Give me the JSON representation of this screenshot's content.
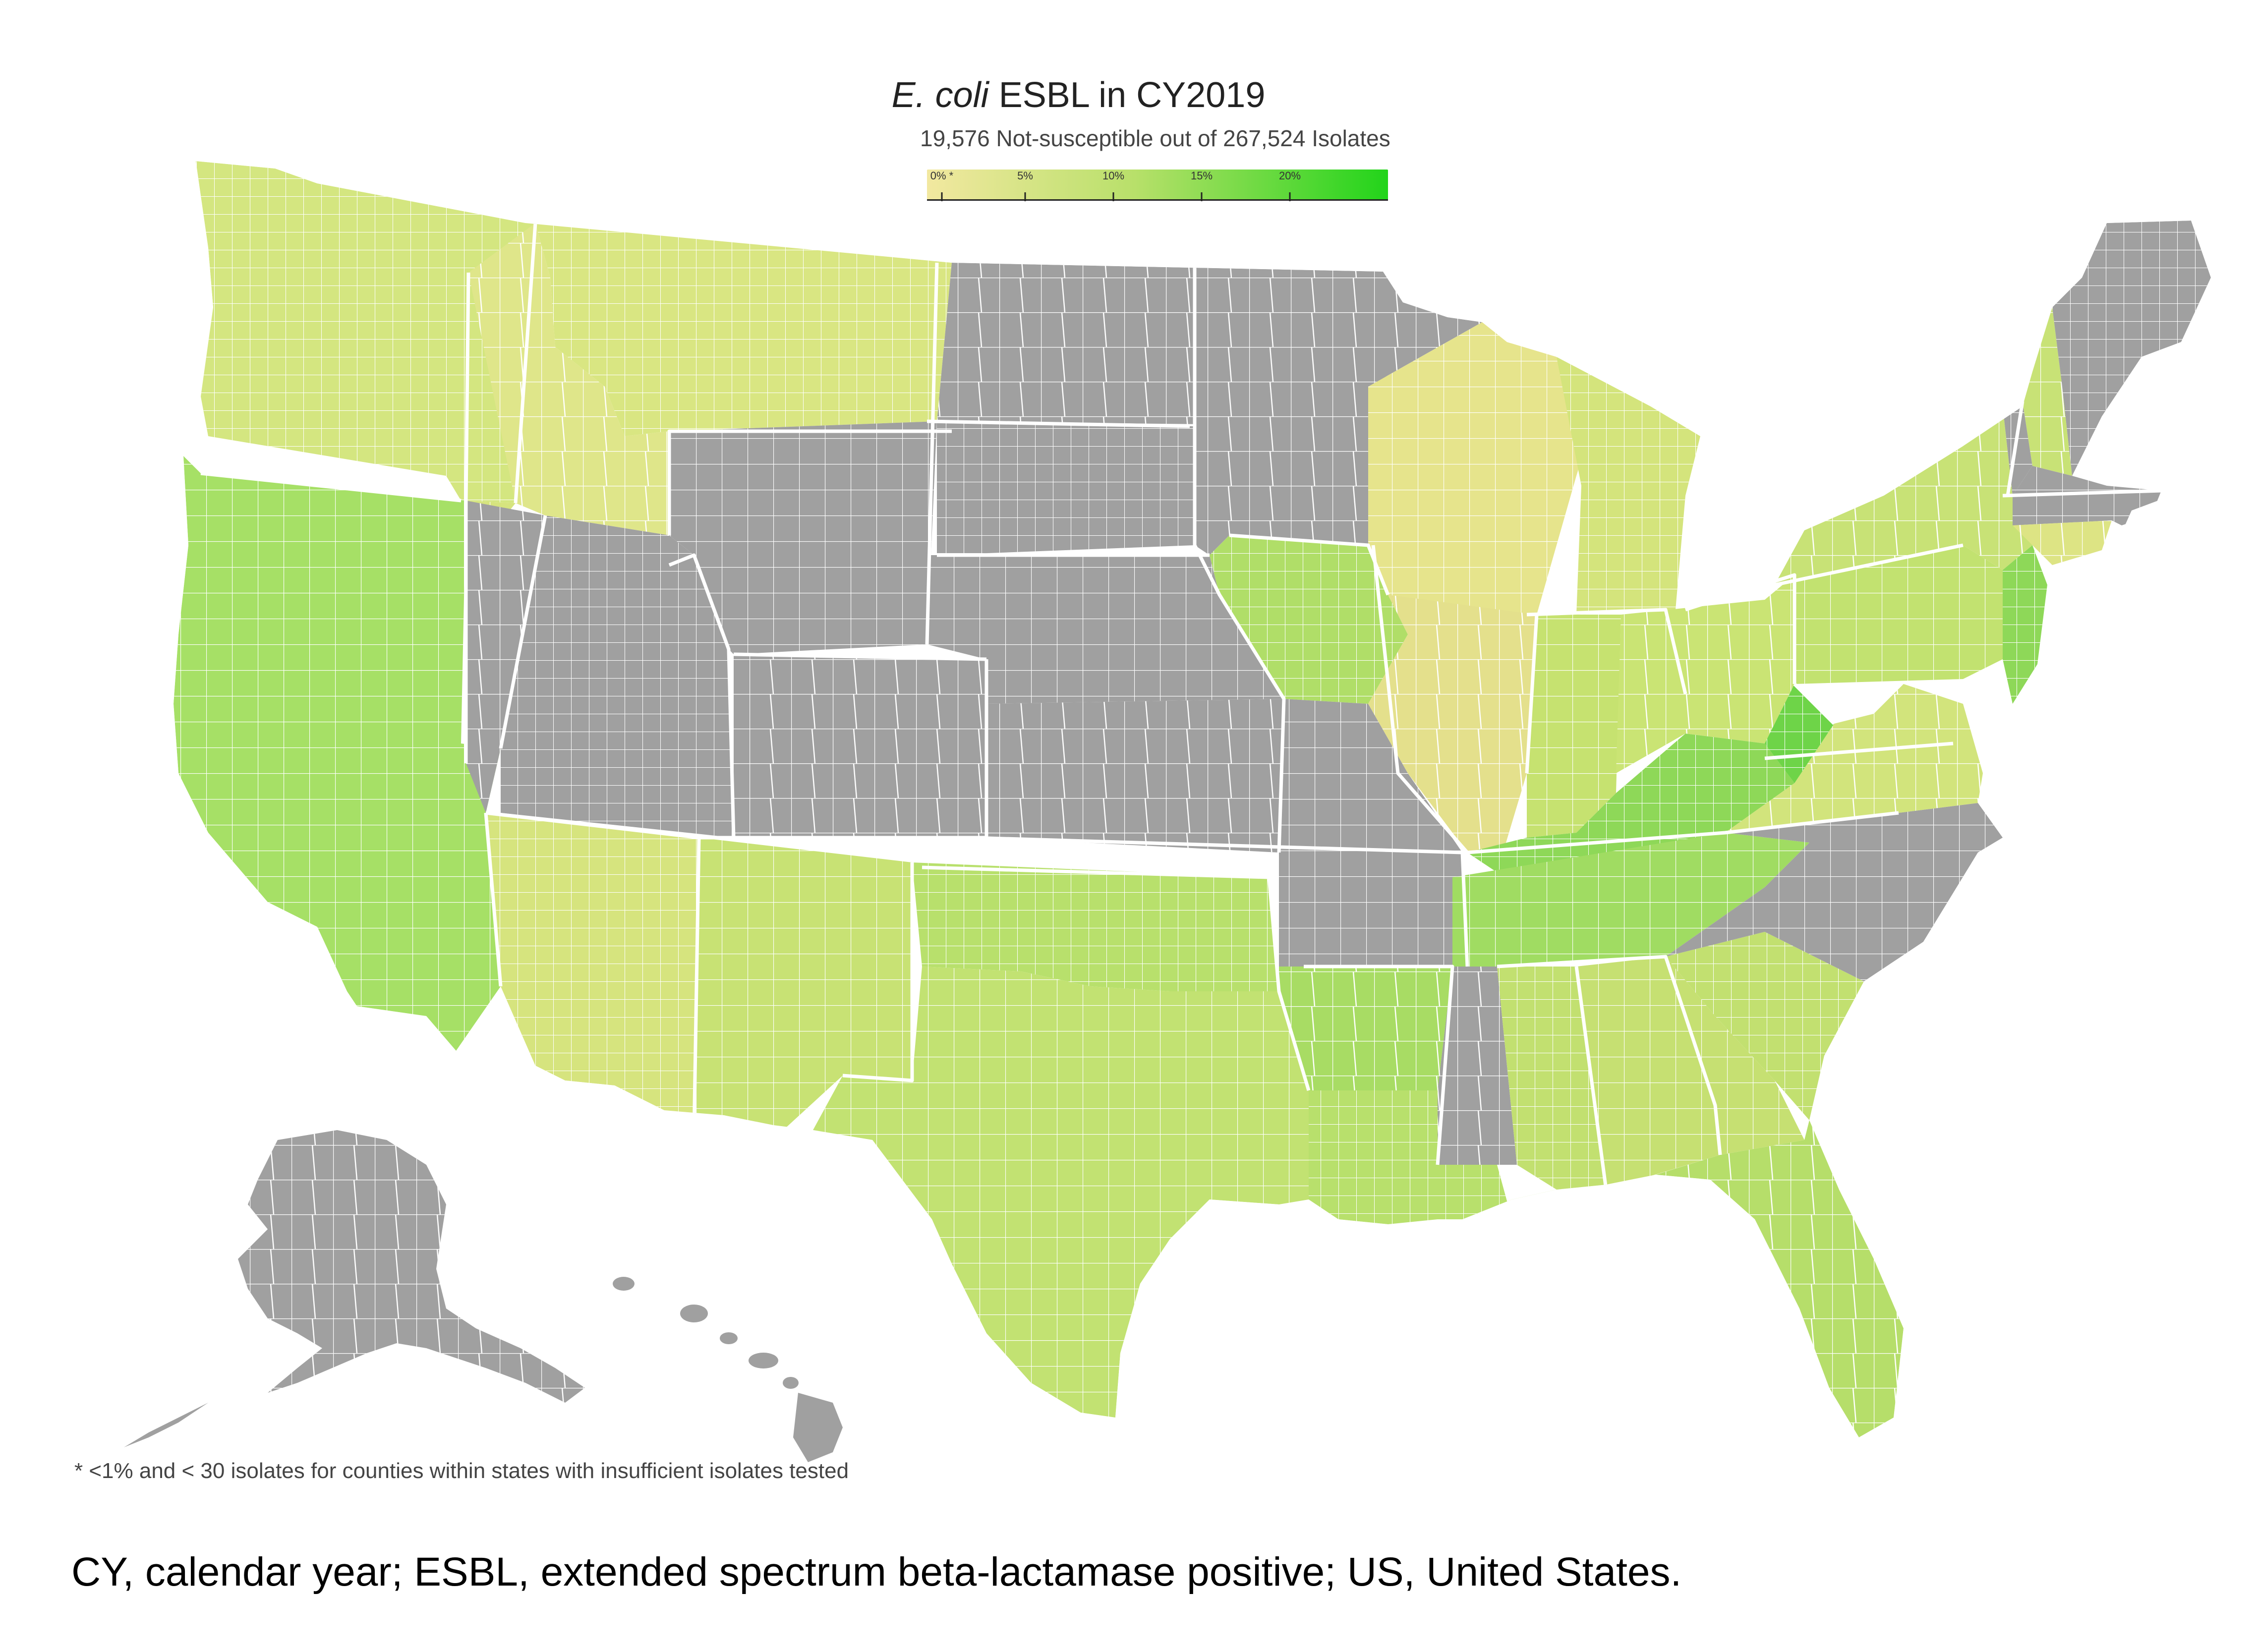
{
  "title": {
    "italic": "E. coli",
    "rest": " ESBL in CY2019"
  },
  "subtitle": "19,576 Not-susceptible out of 267,524 Isolates",
  "legend": {
    "ticks": [
      {
        "label": "0% *",
        "value": 0
      },
      {
        "label": "5%",
        "value": 5
      },
      {
        "label": "10%",
        "value": 10
      },
      {
        "label": "15%",
        "value": 15
      },
      {
        "label": "20%",
        "value": 20
      }
    ],
    "min_value": 0,
    "max_value": 25,
    "color_low": "#f2e8a0",
    "color_mid": "#b8e06a",
    "color_high": "#22d41a",
    "no_data_color": "#a0a0a0"
  },
  "footnote": "* <1% and < 30 isolates for counties within states with insufficient isolates tested",
  "caption": "CY, calendar year; ESBL, extended spectrum beta-lactamase positive; US, United States.",
  "map": {
    "regions": [
      {
        "name": "washington",
        "color": "#d4e680"
      },
      {
        "name": "oregon",
        "color": "#d6e47e"
      },
      {
        "name": "idaho",
        "color": "#dfe68a"
      },
      {
        "name": "montana",
        "color": "#d9e682"
      },
      {
        "name": "california",
        "color": "#a6e066"
      },
      {
        "name": "nevada",
        "color": "#a0a0a0"
      },
      {
        "name": "utah",
        "color": "#a0a0a0"
      },
      {
        "name": "wyoming",
        "color": "#a0a0a0"
      },
      {
        "name": "colorado",
        "color": "#a0a0a0"
      },
      {
        "name": "arizona",
        "color": "#d6e47e"
      },
      {
        "name": "new-mexico",
        "color": "#c8e274"
      },
      {
        "name": "north-dakota",
        "color": "#a0a0a0"
      },
      {
        "name": "south-dakota",
        "color": "#a0a0a0"
      },
      {
        "name": "nebraska",
        "color": "#a0a0a0"
      },
      {
        "name": "kansas",
        "color": "#a0a0a0"
      },
      {
        "name": "oklahoma",
        "color": "#b8e06c"
      },
      {
        "name": "texas",
        "color": "#c2e272"
      },
      {
        "name": "minnesota",
        "color": "#a0a0a0"
      },
      {
        "name": "iowa",
        "color": "#b0de68"
      },
      {
        "name": "missouri",
        "color": "#a0a0a0"
      },
      {
        "name": "arkansas",
        "color": "#a8dc64"
      },
      {
        "name": "louisiana",
        "color": "#b8e06c"
      },
      {
        "name": "wisconsin",
        "color": "#e6e48c"
      },
      {
        "name": "illinois",
        "color": "#e4e08c"
      },
      {
        "name": "michigan",
        "color": "#d4e47c"
      },
      {
        "name": "indiana",
        "color": "#c6e270"
      },
      {
        "name": "ohio",
        "color": "#cae474"
      },
      {
        "name": "kentucky",
        "color": "#8ed858"
      },
      {
        "name": "tennessee",
        "color": "#a0dc62"
      },
      {
        "name": "mississippi",
        "color": "#a0a0a0"
      },
      {
        "name": "alabama",
        "color": "#c2e070"
      },
      {
        "name": "georgia",
        "color": "#c6e072"
      },
      {
        "name": "florida",
        "color": "#b6de6a"
      },
      {
        "name": "south-carolina",
        "color": "#c2e070"
      },
      {
        "name": "north-carolina",
        "color": "#a0a0a0"
      },
      {
        "name": "virginia",
        "color": "#d2e47c"
      },
      {
        "name": "west-virginia",
        "color": "#6ed448"
      },
      {
        "name": "pennsylvania",
        "color": "#c2e270"
      },
      {
        "name": "new-york",
        "color": "#c8e276"
      },
      {
        "name": "new-jersey",
        "color": "#8ed858"
      },
      {
        "name": "vermont",
        "color": "#a0a0a0"
      },
      {
        "name": "new-hampshire",
        "color": "#c8e276"
      },
      {
        "name": "maine",
        "color": "#a0a0a0"
      },
      {
        "name": "massachusetts",
        "color": "#a0a0a0"
      },
      {
        "name": "connecticut",
        "color": "#dde484"
      },
      {
        "name": "alaska",
        "color": "#a0a0a0"
      },
      {
        "name": "hawaii",
        "color": "#a0a0a0"
      }
    ]
  }
}
